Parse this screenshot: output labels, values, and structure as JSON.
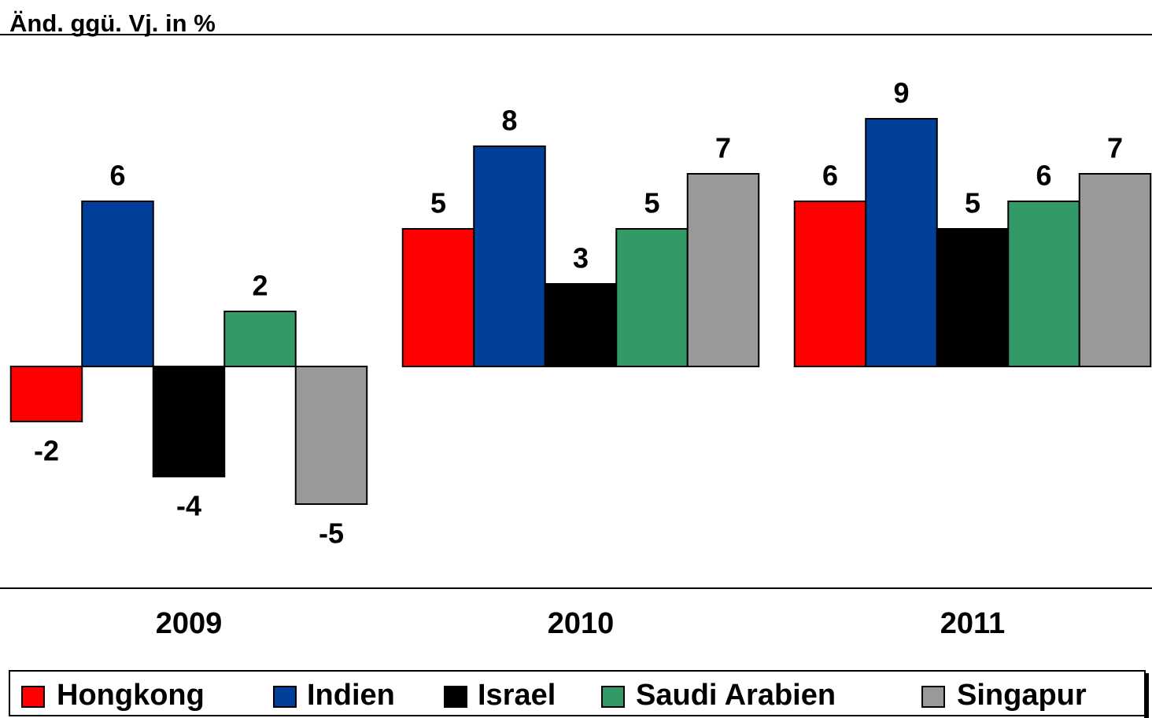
{
  "chart_data": {
    "type": "bar",
    "title": "Änd. ggü. Vj. in %",
    "categories": [
      "2009",
      "2010",
      "2011"
    ],
    "series": [
      {
        "name": "Hongkong",
        "color": "#ff0000",
        "values": [
          -2,
          5,
          6
        ]
      },
      {
        "name": "Indien",
        "color": "#003f9a",
        "values": [
          6,
          8,
          9
        ]
      },
      {
        "name": "Israel",
        "color": "#000000",
        "values": [
          -4,
          3,
          5
        ]
      },
      {
        "name": "Saudi Arabien",
        "color": "#339966",
        "values": [
          2,
          5,
          6
        ]
      },
      {
        "name": "Singapur",
        "color": "#999999",
        "values": [
          -5,
          7,
          7
        ]
      }
    ],
    "ylim": [
      -8,
      12
    ],
    "legend": "bottom"
  }
}
